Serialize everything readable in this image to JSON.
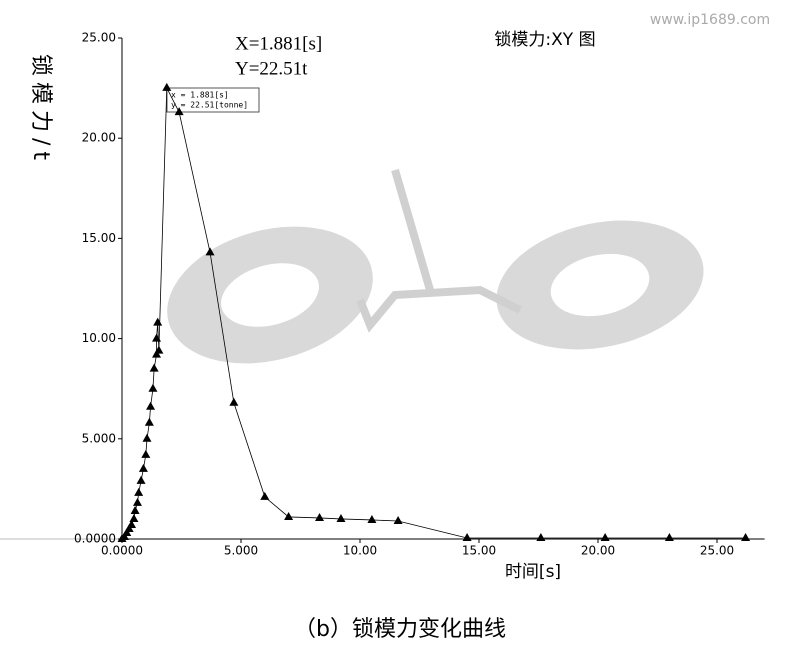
{
  "chart_data": {
    "type": "line",
    "title": "锁模力:XY 图",
    "watermark": "www.ip1689.com",
    "caption": "（b）锁模力变化曲线",
    "x_label": "时间[s]",
    "y_label": "锁模力/t",
    "annotations": [
      "X=1.881[s]",
      "Y=22.51t"
    ],
    "tooltip": [
      "x = 1.881[s]",
      "y = 22.51[tonne]"
    ],
    "xlim": [
      0,
      27
    ],
    "ylim": [
      0,
      25
    ],
    "xticks": [
      {
        "value": 0,
        "label": "0.0000"
      },
      {
        "value": 5,
        "label": "5.000"
      },
      {
        "value": 10,
        "label": "10.00"
      },
      {
        "value": 15,
        "label": "15.00"
      },
      {
        "value": 20,
        "label": "20.00"
      },
      {
        "value": 25,
        "label": "25.00"
      }
    ],
    "yticks": [
      {
        "value": 0,
        "label": "0.0000"
      },
      {
        "value": 5,
        "label": "5.000"
      },
      {
        "value": 10,
        "label": "10.00"
      },
      {
        "value": 15,
        "label": "15.00"
      },
      {
        "value": 20,
        "label": "20.00"
      },
      {
        "value": 25,
        "label": "25.00"
      }
    ],
    "series": [
      {
        "color": "#000000",
        "x": [
          0,
          0.1,
          0.2,
          0.3,
          0.4,
          0.5,
          0.55,
          0.65,
          0.7,
          0.8,
          0.9,
          1.0,
          1.05,
          1.15,
          1.2,
          1.3,
          1.35,
          1.45,
          1.45,
          1.5,
          1.55,
          1.881,
          2.4,
          3.7,
          4.7,
          6.0,
          7.0,
          8.3,
          9.2,
          10.5,
          11.6,
          14.5,
          17.6,
          20.3,
          23.0,
          26.2
        ],
        "values": [
          0,
          0.1,
          0.3,
          0.5,
          0.7,
          1.0,
          1.4,
          1.8,
          2.3,
          2.9,
          3.5,
          4.2,
          5.0,
          5.8,
          6.6,
          7.5,
          8.5,
          9.2,
          10.0,
          10.8,
          9.4,
          22.51,
          21.3,
          14.3,
          6.8,
          2.1,
          1.1,
          1.05,
          1.0,
          0.95,
          0.9,
          0.05,
          0.05,
          0.05,
          0.05,
          0.05
        ]
      }
    ]
  }
}
